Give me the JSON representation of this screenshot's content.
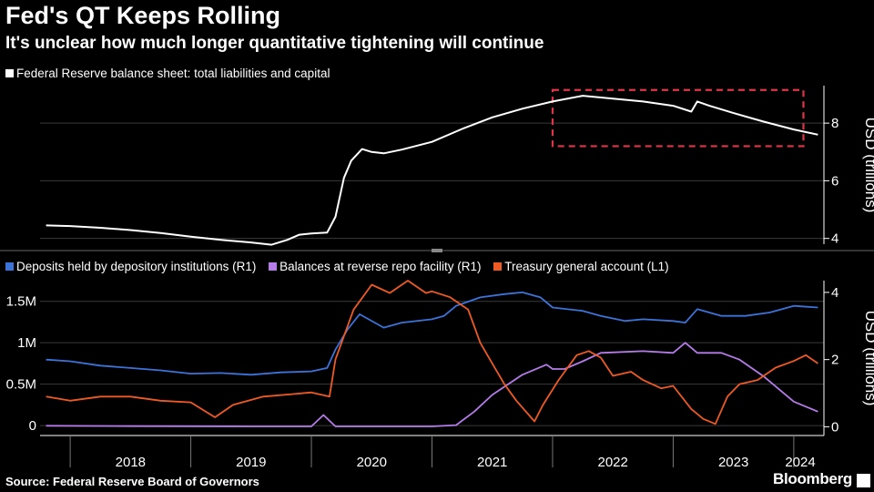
{
  "title": "Fed's QT Keeps Rolling",
  "subtitle": "It's unclear how much longer quantitative tightening will continue",
  "source": "Source: Federal Reserve Board of Governors",
  "brand": "Bloomberg",
  "colors": {
    "white": "#ffffff",
    "blue": "#3b73d9",
    "purple": "#b57be8",
    "orange": "#ee5a24",
    "highlight": "#e03548",
    "grid": "#3a3a3a"
  },
  "chart_data": [
    {
      "type": "line",
      "legend": [
        "Federal Reserve balance sheet: total liabilities and capital"
      ],
      "ylabel": "USD (trillions)",
      "y_axis_side": "right",
      "ylim": [
        3.8,
        9.3
      ],
      "yticks": [
        4,
        6,
        8
      ],
      "xlim": [
        2017.75,
        2024.25
      ],
      "annotation": {
        "type": "dashed-box",
        "x": [
          2022.0,
          2024.08
        ],
        "y": [
          7.2,
          9.15
        ]
      },
      "series": [
        {
          "name": "Federal Reserve balance sheet: total liabilities and capital",
          "color": "#ffffff",
          "points": [
            [
              2017.8,
              4.45
            ],
            [
              2018.0,
              4.43
            ],
            [
              2018.25,
              4.37
            ],
            [
              2018.5,
              4.29
            ],
            [
              2018.75,
              4.19
            ],
            [
              2019.0,
              4.06
            ],
            [
              2019.25,
              3.95
            ],
            [
              2019.5,
              3.86
            ],
            [
              2019.67,
              3.78
            ],
            [
              2019.8,
              3.95
            ],
            [
              2019.9,
              4.13
            ],
            [
              2020.0,
              4.17
            ],
            [
              2020.13,
              4.2
            ],
            [
              2020.2,
              4.75
            ],
            [
              2020.27,
              6.1
            ],
            [
              2020.33,
              6.7
            ],
            [
              2020.42,
              7.1
            ],
            [
              2020.5,
              7.0
            ],
            [
              2020.6,
              6.95
            ],
            [
              2020.75,
              7.08
            ],
            [
              2021.0,
              7.35
            ],
            [
              2021.25,
              7.8
            ],
            [
              2021.5,
              8.2
            ],
            [
              2021.75,
              8.5
            ],
            [
              2022.0,
              8.75
            ],
            [
              2022.25,
              8.95
            ],
            [
              2022.5,
              8.85
            ],
            [
              2022.75,
              8.75
            ],
            [
              2023.0,
              8.6
            ],
            [
              2023.15,
              8.4
            ],
            [
              2023.2,
              8.75
            ],
            [
              2023.3,
              8.6
            ],
            [
              2023.5,
              8.35
            ],
            [
              2023.75,
              8.05
            ],
            [
              2024.0,
              7.78
            ],
            [
              2024.2,
              7.6
            ]
          ]
        }
      ]
    },
    {
      "type": "line",
      "legend": [
        "Deposits held by depository institutions (R1)",
        "Balances at reverse repo facility (R1)",
        "Treasury general account  (L1)"
      ],
      "ylabel": "USD (trillions)",
      "left_axis": {
        "ylim": [
          -0.12,
          1.75
        ],
        "yticks": [
          0,
          0.5,
          1,
          1.5
        ],
        "tick_labels": [
          "0",
          "0.5M",
          "1M",
          "1.5M"
        ]
      },
      "right_axis": {
        "ylim": [
          -0.26,
          4.35
        ],
        "yticks": [
          0,
          2,
          4
        ],
        "tick_labels": [
          "0",
          "2",
          "4"
        ]
      },
      "x_tick_labels": [
        "2018",
        "2019",
        "2020",
        "2021",
        "2022",
        "2023",
        "2024"
      ],
      "xlim": [
        2017.75,
        2024.25
      ],
      "series": [
        {
          "name": "Deposits held by depository institutions (R1)",
          "axis": "right",
          "color": "#3b73d9",
          "points": [
            [
              2017.8,
              2.0
            ],
            [
              2018.0,
              1.95
            ],
            [
              2018.25,
              1.82
            ],
            [
              2018.5,
              1.75
            ],
            [
              2018.75,
              1.68
            ],
            [
              2019.0,
              1.58
            ],
            [
              2019.25,
              1.6
            ],
            [
              2019.5,
              1.55
            ],
            [
              2019.75,
              1.62
            ],
            [
              2020.0,
              1.65
            ],
            [
              2020.13,
              1.75
            ],
            [
              2020.2,
              2.3
            ],
            [
              2020.3,
              2.9
            ],
            [
              2020.4,
              3.35
            ],
            [
              2020.6,
              2.95
            ],
            [
              2020.75,
              3.1
            ],
            [
              2021.0,
              3.2
            ],
            [
              2021.1,
              3.3
            ],
            [
              2021.2,
              3.6
            ],
            [
              2021.4,
              3.85
            ],
            [
              2021.6,
              3.95
            ],
            [
              2021.75,
              4.0
            ],
            [
              2021.9,
              3.85
            ],
            [
              2022.0,
              3.55
            ],
            [
              2022.25,
              3.45
            ],
            [
              2022.4,
              3.3
            ],
            [
              2022.6,
              3.15
            ],
            [
              2022.75,
              3.2
            ],
            [
              2023.0,
              3.15
            ],
            [
              2023.1,
              3.1
            ],
            [
              2023.2,
              3.5
            ],
            [
              2023.4,
              3.3
            ],
            [
              2023.6,
              3.3
            ],
            [
              2023.8,
              3.4
            ],
            [
              2024.0,
              3.6
            ],
            [
              2024.2,
              3.55
            ]
          ]
        },
        {
          "name": "Balances at reverse repo facility (R1)",
          "axis": "right",
          "color": "#b57be8",
          "points": [
            [
              2017.8,
              0.03
            ],
            [
              2018.5,
              0.02
            ],
            [
              2019.5,
              0.01
            ],
            [
              2020.0,
              0.01
            ],
            [
              2020.1,
              0.35
            ],
            [
              2020.2,
              0.01
            ],
            [
              2020.6,
              0.01
            ],
            [
              2021.0,
              0.01
            ],
            [
              2021.2,
              0.05
            ],
            [
              2021.35,
              0.45
            ],
            [
              2021.5,
              0.95
            ],
            [
              2021.75,
              1.55
            ],
            [
              2021.95,
              1.85
            ],
            [
              2022.0,
              1.72
            ],
            [
              2022.1,
              1.72
            ],
            [
              2022.25,
              1.95
            ],
            [
              2022.4,
              2.2
            ],
            [
              2022.75,
              2.25
            ],
            [
              2023.0,
              2.2
            ],
            [
              2023.1,
              2.5
            ],
            [
              2023.2,
              2.2
            ],
            [
              2023.4,
              2.2
            ],
            [
              2023.55,
              2.0
            ],
            [
              2023.75,
              1.5
            ],
            [
              2023.9,
              1.05
            ],
            [
              2024.0,
              0.75
            ],
            [
              2024.2,
              0.45
            ]
          ]
        },
        {
          "name": "Treasury general account  (L1)",
          "axis": "left",
          "color": "#ee5a24",
          "points": [
            [
              2017.8,
              0.35
            ],
            [
              2018.0,
              0.3
            ],
            [
              2018.25,
              0.35
            ],
            [
              2018.5,
              0.35
            ],
            [
              2018.75,
              0.3
            ],
            [
              2019.0,
              0.28
            ],
            [
              2019.2,
              0.1
            ],
            [
              2019.35,
              0.25
            ],
            [
              2019.6,
              0.35
            ],
            [
              2019.85,
              0.38
            ],
            [
              2020.0,
              0.4
            ],
            [
              2020.15,
              0.35
            ],
            [
              2020.2,
              0.8
            ],
            [
              2020.35,
              1.4
            ],
            [
              2020.5,
              1.7
            ],
            [
              2020.65,
              1.6
            ],
            [
              2020.8,
              1.75
            ],
            [
              2020.95,
              1.6
            ],
            [
              2021.0,
              1.62
            ],
            [
              2021.15,
              1.55
            ],
            [
              2021.3,
              1.4
            ],
            [
              2021.4,
              1.0
            ],
            [
              2021.5,
              0.75
            ],
            [
              2021.6,
              0.5
            ],
            [
              2021.7,
              0.3
            ],
            [
              2021.85,
              0.05
            ],
            [
              2021.92,
              0.25
            ],
            [
              2022.05,
              0.55
            ],
            [
              2022.2,
              0.85
            ],
            [
              2022.3,
              0.9
            ],
            [
              2022.4,
              0.82
            ],
            [
              2022.5,
              0.6
            ],
            [
              2022.65,
              0.65
            ],
            [
              2022.75,
              0.55
            ],
            [
              2022.9,
              0.45
            ],
            [
              2023.0,
              0.48
            ],
            [
              2023.15,
              0.2
            ],
            [
              2023.25,
              0.08
            ],
            [
              2023.35,
              0.02
            ],
            [
              2023.45,
              0.35
            ],
            [
              2023.55,
              0.5
            ],
            [
              2023.7,
              0.55
            ],
            [
              2023.85,
              0.7
            ],
            [
              2024.0,
              0.78
            ],
            [
              2024.1,
              0.85
            ],
            [
              2024.2,
              0.75
            ]
          ]
        }
      ]
    }
  ]
}
